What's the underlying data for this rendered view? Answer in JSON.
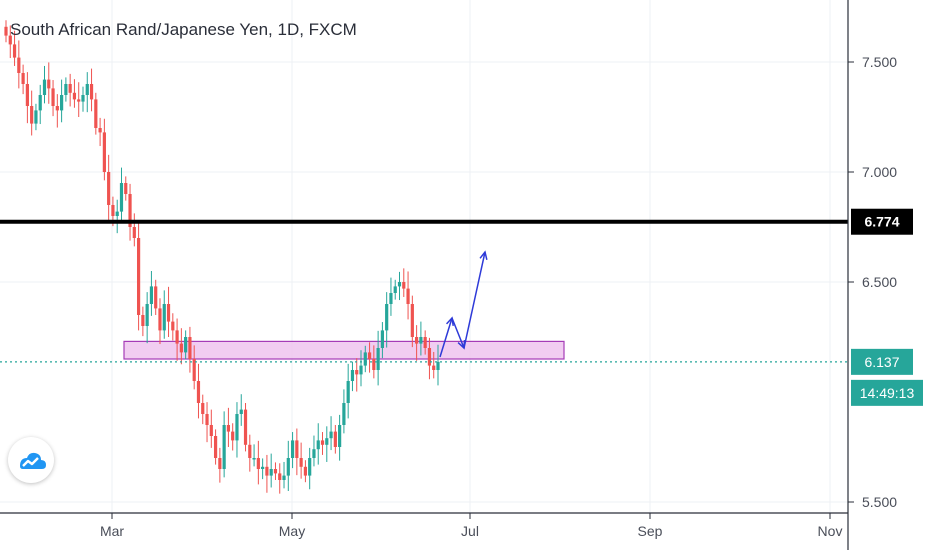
{
  "title": "South African Rand/Japanese Yen, 1D, FXCM",
  "colors": {
    "up": "#26a69a",
    "down": "#ef5350",
    "grid": "#eef1f4",
    "support_line": "#000000",
    "zone_fill": "#f0c8f0",
    "zone_stroke": "#9c27b0",
    "arrow": "#2e3ad8",
    "price_line": "#26a69a"
  },
  "axis": {
    "y_ticks": [
      "7.500",
      "7.000",
      "6.500",
      "5.500"
    ],
    "x_ticks": [
      "Mar",
      "May",
      "Jul",
      "Sep",
      "Nov"
    ]
  },
  "tags": {
    "support_value": "6.774",
    "price_value": "6.137",
    "countdown": "14:49:13"
  },
  "logo_icon": "tradingview-cloud-icon",
  "chart_data": {
    "type": "candlestick",
    "title": "South African Rand/Japanese Yen, 1D, FXCM",
    "x_ticks": [
      "Mar",
      "May",
      "Jul",
      "Sep",
      "Nov"
    ],
    "y_ticks": [
      5.5,
      6.5,
      7.0,
      7.5
    ],
    "ylim": [
      5.45,
      7.8
    ],
    "grid": true,
    "support_line": 6.774,
    "zone": {
      "low": 6.15,
      "high": 6.23,
      "x_start": "Feb 21",
      "x_end": "Aug 8"
    },
    "last_price": 6.137,
    "projection_arrows": [
      {
        "from": [
          6.13,
          "Jun 27"
        ],
        "to": [
          6.3,
          "Jul 1"
        ]
      },
      {
        "from": [
          6.3,
          "Jul 1"
        ],
        "to": [
          6.18,
          "Jul 5"
        ]
      },
      {
        "from": [
          6.18,
          "Jul 5"
        ],
        "to": [
          6.62,
          "Jul 9"
        ]
      }
    ],
    "closes": [
      7.62,
      7.58,
      7.52,
      7.45,
      7.4,
      7.3,
      7.22,
      7.28,
      7.35,
      7.42,
      7.38,
      7.3,
      7.28,
      7.35,
      7.4,
      7.36,
      7.33,
      7.32,
      7.35,
      7.4,
      7.33,
      7.2,
      7.18,
      7.0,
      6.85,
      6.8,
      6.82,
      6.95,
      6.9,
      6.75,
      6.7,
      6.35,
      6.3,
      6.4,
      6.48,
      6.38,
      6.28,
      6.4,
      6.32,
      6.28,
      6.22,
      6.18,
      6.25,
      6.15,
      6.05,
      5.95,
      5.9,
      5.85,
      5.8,
      5.7,
      5.65,
      5.85,
      5.82,
      5.78,
      5.9,
      5.92,
      5.76,
      5.7,
      5.7,
      5.65,
      5.66,
      5.62,
      5.65,
      5.63,
      5.6,
      5.62,
      5.7,
      5.78,
      5.7,
      5.66,
      5.62,
      5.7,
      5.74,
      5.78,
      5.76,
      5.79,
      5.82,
      5.75,
      5.85,
      5.95,
      6.05,
      6.1,
      6.08,
      6.12,
      6.18,
      6.15,
      6.1,
      6.2,
      6.28,
      6.4,
      6.45,
      6.48,
      6.5,
      6.47,
      6.4,
      6.25,
      6.22,
      6.25,
      6.2,
      6.12,
      6.1,
      6.137
    ]
  }
}
